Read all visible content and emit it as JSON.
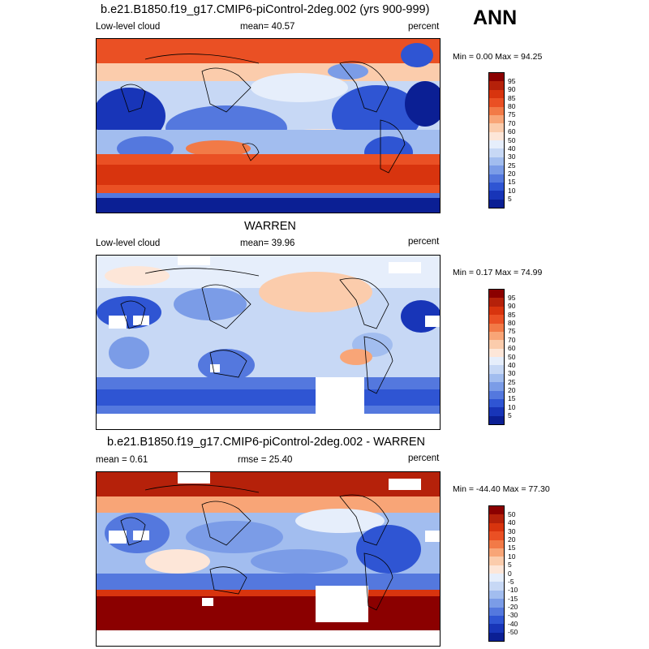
{
  "season": "ANN",
  "panels": [
    {
      "title": "b.e21.B1850.f19_g17.CMIP6-piControl-2deg.002 (yrs 900-999)",
      "left_label": "Low-level cloud",
      "center_label": "mean=  40.57",
      "right_label": "percent",
      "minmax": "Min =  0.00 Max =  94.25",
      "type": "abs"
    },
    {
      "title": "WARREN",
      "left_label": "Low-level cloud",
      "center_label": "mean=  39.96",
      "right_label": "percent",
      "minmax": "Min =  0.17 Max =  74.99",
      "type": "obs"
    },
    {
      "title": "b.e21.B1850.f19_g17.CMIP6-piControl-2deg.002 - WARREN",
      "left_label": "mean =   0.61",
      "center_label": "rmse =  25.40",
      "right_label": "percent",
      "minmax": "Min = -44.40 Max =  77.30",
      "type": "diff"
    }
  ],
  "colorbar_abs": {
    "labels": [
      "95",
      "90",
      "85",
      "80",
      "75",
      "70",
      "60",
      "50",
      "40",
      "30",
      "25",
      "20",
      "15",
      "10",
      "5"
    ],
    "colors": [
      "#8b0000",
      "#b5210a",
      "#d8340e",
      "#ea5024",
      "#f27a47",
      "#f8a577",
      "#fbccac",
      "#fde6d8",
      "#e6eefb",
      "#c7d8f5",
      "#a2bdef",
      "#7b9ce7",
      "#5478de",
      "#2f55d3",
      "#1835b8",
      "#0b1f94"
    ]
  },
  "colorbar_diff": {
    "labels": [
      "50",
      "40",
      "30",
      "20",
      "15",
      "10",
      "5",
      "0",
      "-5",
      "-10",
      "-15",
      "-20",
      "-30",
      "-40",
      "-50"
    ],
    "colors": [
      "#8b0000",
      "#b5210a",
      "#d8340e",
      "#ea5024",
      "#f27a47",
      "#f8a577",
      "#fbccac",
      "#fde6d8",
      "#e6eefb",
      "#c7d8f5",
      "#a2bdef",
      "#7b9ce7",
      "#5478de",
      "#2f55d3",
      "#1835b8",
      "#0b1f94"
    ]
  },
  "chart_data": [
    {
      "type": "heatmap",
      "title": "b.e21.B1850.f19_g17.CMIP6-piControl-2deg.002 (yrs 900-999)",
      "variable": "Low-level cloud",
      "units": "percent",
      "mean": 40.57,
      "min": 0.0,
      "max": 94.25,
      "contour_levels": [
        5,
        10,
        15,
        20,
        25,
        30,
        40,
        50,
        60,
        70,
        75,
        80,
        85,
        90,
        95
      ]
    },
    {
      "type": "heatmap",
      "title": "WARREN",
      "variable": "Low-level cloud",
      "units": "percent",
      "mean": 39.96,
      "min": 0.17,
      "max": 74.99,
      "contour_levels": [
        5,
        10,
        15,
        20,
        25,
        30,
        40,
        50,
        60,
        70,
        75,
        80,
        85,
        90,
        95
      ]
    },
    {
      "type": "heatmap",
      "title": "b.e21.B1850.f19_g17.CMIP6-piControl-2deg.002 - WARREN",
      "units": "percent",
      "mean": 0.61,
      "rmse": 25.4,
      "min": -44.4,
      "max": 77.3,
      "contour_levels": [
        -50,
        -40,
        -30,
        -20,
        -15,
        -10,
        -5,
        0,
        5,
        10,
        15,
        20,
        30,
        40,
        50
      ]
    }
  ]
}
